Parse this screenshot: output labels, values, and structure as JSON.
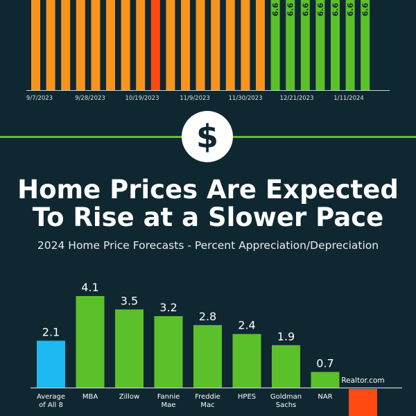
{
  "colors": {
    "background": "#0f2730",
    "orange": "#f7941d",
    "red": "#ff4a12",
    "green": "#5cc02a",
    "blue": "#1cb8f2",
    "white": "#ffffff"
  },
  "badge": {
    "symbol": "$",
    "icon": "dollar-icon"
  },
  "headline": {
    "line1": "Home Prices Are Expected",
    "line2": "To Rise at a Slower Pace"
  },
  "subheadline": "2024 Home Price Forecasts - Percent Appreciation/Depreciation",
  "chart_data": [
    {
      "type": "bar",
      "x_tick_labels": [
        "9/7/2023",
        "9/28/2023",
        "10/19/2023",
        "11/9/2023",
        "11/30/2023",
        "12/21/2023",
        "1/11/2024"
      ],
      "bar_colors": [
        "orange",
        "orange",
        "orange",
        "orange",
        "orange",
        "orange",
        "orange",
        "orange",
        "red",
        "orange",
        "orange",
        "orange",
        "orange",
        "orange",
        "orange",
        "orange",
        "green",
        "green",
        "green",
        "green",
        "green",
        "green",
        "green"
      ],
      "visible_value_labels": [
        "6.6",
        "6.6",
        "6.6",
        "6.6",
        "6.6",
        "6.6",
        "6.6"
      ]
    },
    {
      "type": "bar",
      "categories": [
        [
          "Average",
          "of All 8"
        ],
        [
          "MBA"
        ],
        [
          "Zillow"
        ],
        [
          "Fannie",
          "Mae"
        ],
        [
          "Freddie",
          "Mac"
        ],
        [
          "HPES"
        ],
        [
          "Goldman",
          "Sachs"
        ],
        [
          "NAR"
        ],
        [
          "Realtor.com"
        ]
      ],
      "values": [
        2.1,
        4.1,
        3.5,
        3.2,
        2.8,
        2.4,
        1.9,
        0.7,
        null
      ],
      "value_labels": [
        "2.1",
        "4.1",
        "3.5",
        "3.2",
        "2.8",
        "2.4",
        "1.9",
        "0.7",
        ""
      ],
      "bar_colors": [
        "blue",
        "green",
        "green",
        "green",
        "green",
        "green",
        "green",
        "green",
        "red"
      ]
    }
  ]
}
